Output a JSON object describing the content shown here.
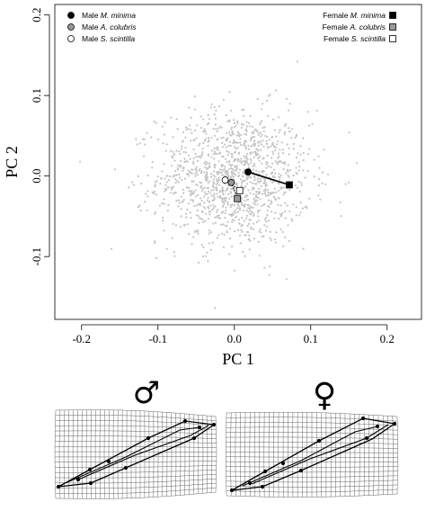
{
  "chart_data": {
    "type": "scatter",
    "xlabel": "PC 1",
    "ylabel": "PC 2",
    "xlim": [
      -0.235,
      0.245
    ],
    "ylim": [
      -0.178,
      0.213
    ],
    "x_ticks": [
      "-0.2",
      "-0.1",
      "0.0",
      "0.1",
      "0.2"
    ],
    "x_tick_values": [
      -0.2,
      -0.1,
      0.0,
      0.1,
      0.2
    ],
    "y_ticks": [
      "-0.1",
      "0.0",
      "0.1",
      "0.2"
    ],
    "y_tick_values": [
      -0.1,
      0.0,
      0.1,
      0.2
    ],
    "grid": false,
    "cloud_color": "#c4c4c4",
    "series": [
      {
        "sex": "Male",
        "species": "M. minima",
        "marker": "circle",
        "fill": "#000000",
        "x": 0.018,
        "y": 0.005
      },
      {
        "sex": "Male",
        "species": "A. colubris",
        "marker": "circle",
        "fill": "#999999",
        "x": -0.004,
        "y": -0.008
      },
      {
        "sex": "Male",
        "species": "S. scintilla",
        "marker": "circle",
        "fill": "#ffffff",
        "x": -0.012,
        "y": -0.005
      },
      {
        "sex": "Female",
        "species": "M. minima",
        "marker": "square",
        "fill": "#000000",
        "x": 0.072,
        "y": -0.011
      },
      {
        "sex": "Female",
        "species": "A. colubris",
        "marker": "square",
        "fill": "#999999",
        "x": 0.004,
        "y": -0.028
      },
      {
        "sex": "Female",
        "species": "S. scintilla",
        "marker": "square",
        "fill": "#ffffff",
        "x": 0.007,
        "y": -0.018
      }
    ],
    "lines": [
      {
        "from": [
          0.018,
          0.005
        ],
        "to": [
          0.072,
          -0.011
        ],
        "color": "#000000"
      }
    ],
    "legend_left_placement": "top-left",
    "legend_right_placement": "top-right"
  },
  "deformation": {
    "male_symbol": "♂",
    "female_symbol": "♀"
  }
}
